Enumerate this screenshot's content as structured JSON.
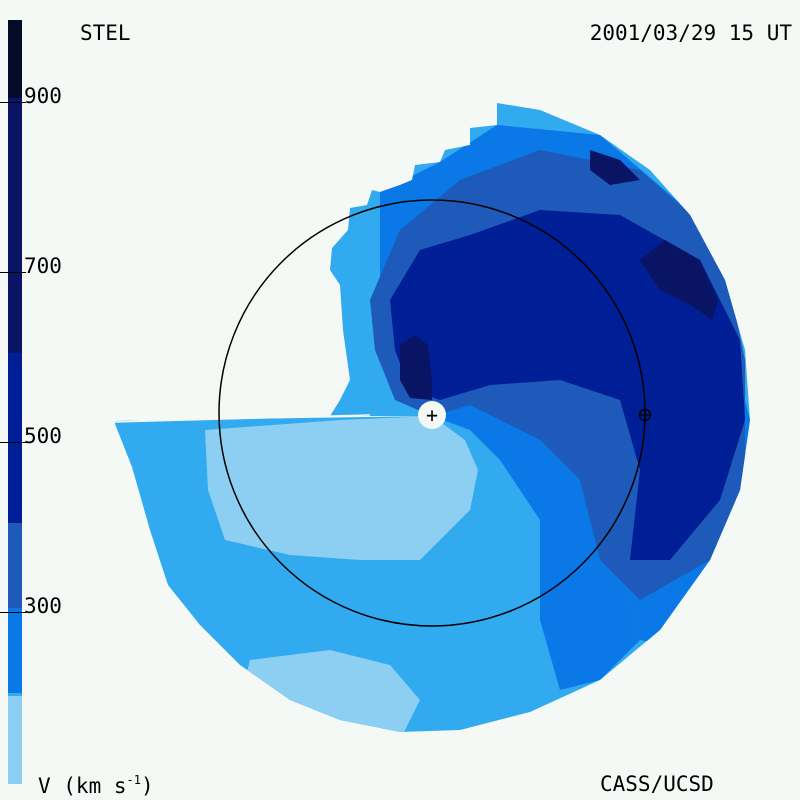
{
  "header": {
    "left_label": "STEL",
    "timestamp": "2001/03/29 15 UT"
  },
  "footer": {
    "units_prefix": "V (km s",
    "units_exp": "-1",
    "units_suffix": ")",
    "credit": "CASS/UCSD"
  },
  "colorbar": {
    "tick_labels": [
      "900",
      "700",
      "500",
      "300"
    ],
    "colors": [
      "#050a28",
      "#0a1465",
      "#001e96",
      "#1e5ab9",
      "#0a78e6",
      "#32aaf0",
      "#8ccff2"
    ]
  },
  "palette": {
    "background": "#f4f9f6",
    "v_lightest": "#8ccff2",
    "v_light": "#32aaf0",
    "v_mid": "#0a78e6",
    "v_medium": "#1e5ab9",
    "v_dark": "#001e96",
    "v_darker": "#0a1465",
    "v_darkest": "#050a28"
  },
  "markers": {
    "sun_symbol": "+",
    "earth_symbol": "⊕"
  }
}
